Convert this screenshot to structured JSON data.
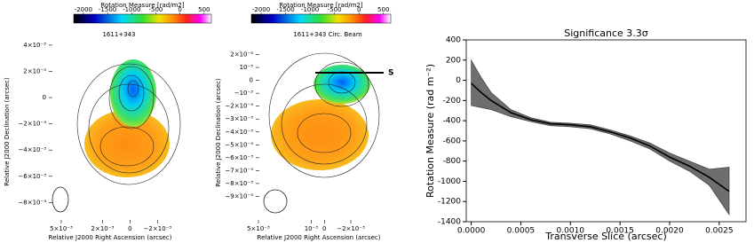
{
  "chart_data": [
    {
      "type": "image",
      "title": "1611+343",
      "colorbar_label": "Rotation Measure [rad/m2]",
      "clim": [
        -2200,
        650
      ],
      "cticks": [
        -2000,
        -1500,
        -1000,
        -500,
        0,
        500
      ],
      "xlabel": "Relative J2000 Right Ascension (arcsec)",
      "ylabel": "Relative J2000 Declination (arcsec)",
      "xlim": [
        0.0059,
        -0.0043
      ],
      "ylim": [
        -0.0096,
        0.0044
      ],
      "xticks": [
        {
          "value": 0.005,
          "label": "5×10⁻³"
        },
        {
          "value": 0.002,
          "label": "2×10⁻³"
        },
        0,
        {
          "value": -0.002,
          "label": "−2×10⁻³"
        }
      ],
      "yticks": [
        {
          "value": 0.004,
          "label": "4×10⁻³"
        },
        {
          "value": 0.002,
          "label": "2×10⁻³"
        },
        0,
        {
          "value": -0.002,
          "label": "−2×10⁻³"
        },
        {
          "value": -0.004,
          "label": "−4×10⁻³"
        },
        {
          "value": -0.006,
          "label": "−6×10⁻³"
        },
        {
          "value": -0.008,
          "label": "−8×10⁻³"
        }
      ]
    },
    {
      "type": "image",
      "title": "1611+343 Circ. Beam",
      "colorbar_label": "Rotation Measure [rad/m2]",
      "clim": [
        -2200,
        650
      ],
      "cticks": [
        -2000,
        -1500,
        -1000,
        -500,
        0,
        500
      ],
      "xlabel": "Relative J2000 Right Ascension (arcsec)",
      "ylabel": "Relative J2000 Declination (arcsec)",
      "slice_label": "S",
      "xlim": [
        0.0052,
        -0.0057
      ],
      "ylim": [
        -0.0111,
        0.003
      ],
      "xticks": [
        {
          "value": 0.005,
          "label": "5×10⁻³"
        },
        {
          "value": 0.001,
          "label": "10⁻³"
        },
        0,
        {
          "value": -0.002,
          "label": "−2×10⁻³"
        }
      ],
      "yticks": [
        {
          "value": 0.002,
          "label": "2×10⁻³"
        },
        {
          "value": 0.001,
          "label": "10⁻³"
        },
        0,
        {
          "value": -0.001,
          "label": "−10⁻³"
        },
        {
          "value": -0.002,
          "label": "−2×10⁻³"
        },
        {
          "value": -0.003,
          "label": "−3×10⁻³"
        },
        {
          "value": -0.004,
          "label": "−4×10⁻³"
        },
        {
          "value": -0.005,
          "label": "−5×10⁻³"
        },
        {
          "value": -0.006,
          "label": "−6×10⁻³"
        },
        {
          "value": -0.007,
          "label": "−7×10⁻³"
        },
        {
          "value": -0.008,
          "label": "−8×10⁻³"
        },
        {
          "value": -0.009,
          "label": "−9×10⁻³"
        }
      ]
    },
    {
      "type": "line",
      "title": "Significance  3.3σ",
      "xlabel": "Transverse Slice (arcsec)",
      "ylabel": "Rotation Measure (rad m⁻²)",
      "color": "#000000",
      "band_color": "#6e6e6e",
      "x": [
        0,
        0.0001,
        0.0002,
        0.0004,
        0.0006,
        0.0008,
        0.001,
        0.0012,
        0.0014,
        0.0016,
        0.0018,
        0.002,
        0.0022,
        0.0024,
        0.0026
      ],
      "values": [
        -30,
        -120,
        -200,
        -320,
        -390,
        -430,
        -440,
        -460,
        -510,
        -570,
        -650,
        -760,
        -850,
        -960,
        -1100
      ],
      "upper": [
        200,
        30,
        -120,
        -290,
        -370,
        -415,
        -425,
        -440,
        -490,
        -550,
        -620,
        -720,
        -800,
        -880,
        -860
      ],
      "lower": [
        -250,
        -270,
        -290,
        -360,
        -410,
        -450,
        -460,
        -480,
        -530,
        -600,
        -680,
        -800,
        -900,
        -1040,
        -1330
      ],
      "xlim": [
        -5e-05,
        0.00277
      ],
      "ylim": [
        -1400,
        400
      ],
      "xticks": [
        {
          "value": 0,
          "label": "0.0000"
        },
        {
          "value": 0.0005,
          "label": "0.0005"
        },
        {
          "value": 0.001,
          "label": "0.0010"
        },
        {
          "value": 0.0015,
          "label": "0.0015"
        },
        {
          "value": 0.002,
          "label": "0.0020"
        },
        {
          "value": 0.0025,
          "label": "0.0025"
        }
      ],
      "yticks": [
        400,
        200,
        0,
        -200,
        -400,
        -600,
        -800,
        -1000,
        -1200,
        -1400
      ]
    }
  ]
}
